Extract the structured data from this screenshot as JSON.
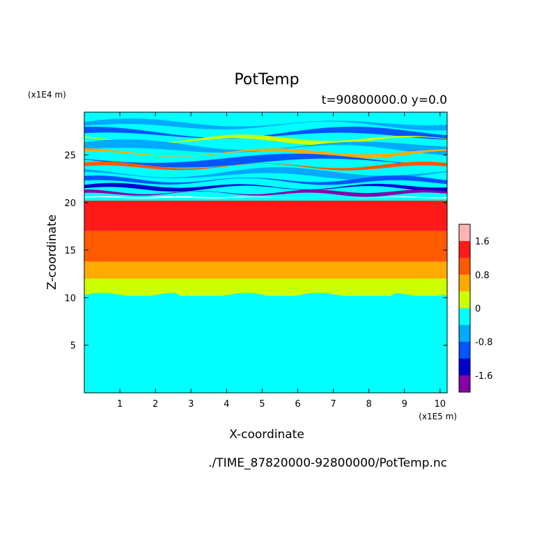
{
  "chart_data": {
    "type": "heatmap",
    "title": "PotTemp",
    "subtitle": "t=90800000.0 y=0.0",
    "xlabel": "X-coordinate",
    "ylabel": "Z-coordinate",
    "x_unit": "(x1E5 m)",
    "y_unit": "(x1E4 m)",
    "xlim": [
      0,
      10.2
    ],
    "ylim": [
      0,
      29.5
    ],
    "x_ticks": [
      "1",
      "2",
      "3",
      "4",
      "5",
      "6",
      "7",
      "8",
      "9",
      "10"
    ],
    "y_ticks": [
      "5",
      "10",
      "15",
      "20",
      "25"
    ],
    "colorbar_labels": [
      "1.6",
      "0.8",
      "0",
      "-0.8",
      "-1.6"
    ],
    "colorbar_levels": [
      {
        "color": "#ffb3b3"
      },
      {
        "color": "#ff1a1a"
      },
      {
        "color": "#ff5a00"
      },
      {
        "color": "#ffaa00"
      },
      {
        "color": "#ccff00"
      },
      {
        "color": "#00ffff"
      },
      {
        "color": "#00aaff"
      },
      {
        "color": "#0055ff"
      },
      {
        "color": "#0000cc"
      },
      {
        "color": "#8800aa"
      }
    ],
    "layers": [
      {
        "from": 0,
        "to": 10.2,
        "color": "#00ffff"
      },
      {
        "from": 10.2,
        "to": 12,
        "color": "#ccff00"
      },
      {
        "from": 12,
        "to": 13.8,
        "color": "#ffaa00"
      },
      {
        "from": 13.8,
        "to": 17,
        "color": "#ff5a00"
      },
      {
        "from": 17,
        "to": 20.2,
        "color": "#ff1a1a"
      }
    ],
    "stratosphere_range": [
      20.2,
      29.5
    ],
    "stratosphere_colors": [
      "#00ffff",
      "#00aaff",
      "#0055ff",
      "#ccff00",
      "#ffaa00",
      "#ff5a00",
      "#0000cc",
      "#8800aa",
      "#ff1a1a"
    ]
  },
  "footer": {
    "filename": "./TIME_87820000-92800000/PotTemp.nc"
  }
}
